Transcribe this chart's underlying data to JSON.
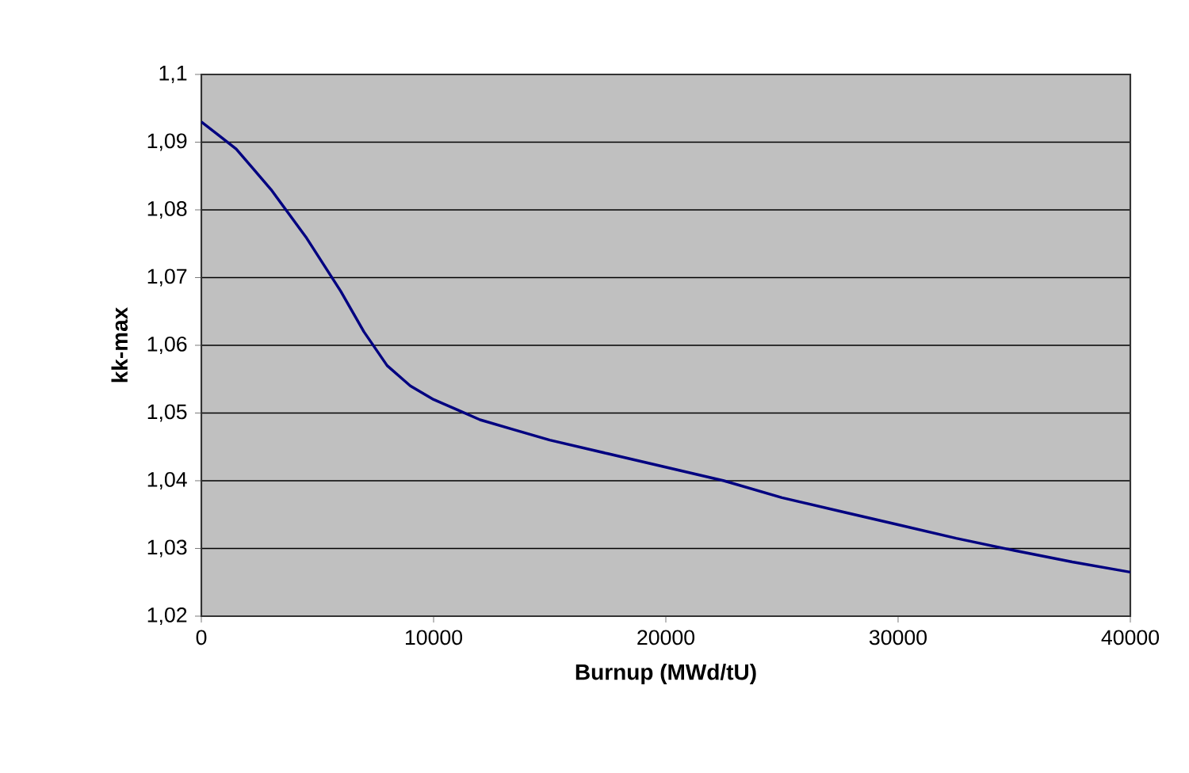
{
  "chart_data": {
    "type": "line",
    "xlabel": "Burnup  (MWd/tU)",
    "ylabel": "kk-max",
    "x": [
      0,
      750,
      1500,
      2250,
      3000,
      3750,
      4500,
      5250,
      6000,
      7000,
      8000,
      9000,
      10000,
      11000,
      12000,
      13500,
      15000,
      17500,
      20000,
      22500,
      25000,
      27500,
      30000,
      32500,
      35000,
      37500,
      40000
    ],
    "series": [
      {
        "color": "#000080",
        "values": [
          1.093,
          1.091,
          1.089,
          1.086,
          1.083,
          1.0795,
          1.076,
          1.072,
          1.068,
          1.062,
          1.057,
          1.054,
          1.052,
          1.0505,
          1.049,
          1.0475,
          1.046,
          1.044,
          1.042,
          1.04,
          1.0375,
          1.0355,
          1.0335,
          1.0315,
          1.0297,
          1.028,
          1.0265
        ]
      }
    ],
    "xlim": [
      0,
      40000
    ],
    "ylim": [
      1.02,
      1.1
    ],
    "xticks": [
      0,
      10000,
      20000,
      30000,
      40000
    ],
    "yticks": [
      {
        "value": 1.02,
        "label": "1,02"
      },
      {
        "value": 1.03,
        "label": "1,03"
      },
      {
        "value": 1.04,
        "label": "1,04"
      },
      {
        "value": 1.05,
        "label": "1,05"
      },
      {
        "value": 1.06,
        "label": "1,06"
      },
      {
        "value": 1.07,
        "label": "1,07"
      },
      {
        "value": 1.08,
        "label": "1,08"
      },
      {
        "value": 1.09,
        "label": "1,09"
      },
      {
        "value": 1.1,
        "label": "1,1"
      }
    ],
    "grid": "y",
    "marker": "none",
    "line_style": "solid"
  }
}
